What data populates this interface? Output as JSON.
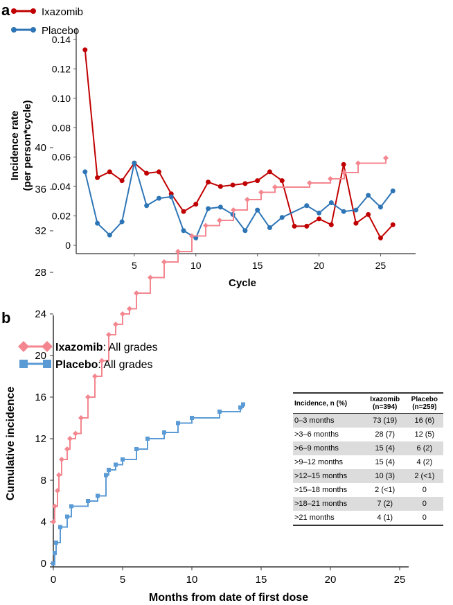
{
  "chart_data": [
    {
      "type": "line",
      "panel_label": "a",
      "xlabel": "Cycle",
      "ylabel": "Incidence rate\n(per person*cycle)",
      "ylabel_lines": [
        "Incidence rate",
        "(per person*cycle)"
      ],
      "xlim": [
        0,
        27
      ],
      "ylim": [
        0,
        0.14
      ],
      "xticks": [
        5,
        10,
        15,
        20,
        25
      ],
      "yticks": [
        "0",
        "0.02",
        "0.04",
        "0.06",
        "0.08",
        "0.10",
        "0.12",
        "0.14"
      ],
      "x": [
        1,
        2,
        3,
        4,
        5,
        6,
        7,
        8,
        9,
        10,
        11,
        12,
        13,
        14,
        15,
        16,
        17,
        18,
        19,
        20,
        21,
        22,
        23,
        24,
        25,
        26
      ],
      "series": [
        {
          "name": "Ixazomib",
          "color": "#c00000",
          "values": [
            0.133,
            0.046,
            0.05,
            0.044,
            0.056,
            0.049,
            0.05,
            0.035,
            0.023,
            0.028,
            0.043,
            0.04,
            0.041,
            0.042,
            0.044,
            0.05,
            0.044,
            0.013,
            0.013,
            0.018,
            0.014,
            0.055,
            0.015,
            0.021,
            0.005,
            0.014
          ]
        },
        {
          "name": "Placebo",
          "color": "#2e75b6",
          "values": [
            0.05,
            0.015,
            0.007,
            0.016,
            0.056,
            0.027,
            0.032,
            0.033,
            0.01,
            0.005,
            0.025,
            0.026,
            0.021,
            0.01,
            0.024,
            0.012,
            0.019,
            null,
            0.027,
            0.022,
            0.029,
            0.023,
            0.024,
            0.034,
            0.026,
            0.037
          ]
        }
      ],
      "legend": "top-left"
    },
    {
      "type": "line",
      "panel_label": "b",
      "xlabel": "Months from date of first dose",
      "ylabel": "Cumulative incidence",
      "xlim": [
        0,
        25
      ],
      "ylim": [
        0,
        40
      ],
      "xticks": [
        0,
        5,
        10,
        15,
        20,
        25
      ],
      "yticks": [
        0,
        4,
        8,
        12,
        16,
        20,
        24,
        28,
        32,
        36,
        40
      ],
      "series": [
        {
          "name": "Ixazomib",
          "suffix": ": All grades",
          "color": "#f4868f",
          "marker": "diamond",
          "points": [
            [
              0,
              4
            ],
            [
              0.1,
              5.5
            ],
            [
              0.3,
              7
            ],
            [
              0.4,
              8.5
            ],
            [
              0.6,
              10
            ],
            [
              1,
              11
            ],
            [
              1.2,
              12
            ],
            [
              1.6,
              12.5
            ],
            [
              2,
              14
            ],
            [
              2.5,
              16
            ],
            [
              3,
              18
            ],
            [
              3.5,
              19.5
            ],
            [
              4,
              22
            ],
            [
              4.5,
              23
            ],
            [
              5,
              24
            ],
            [
              5.5,
              24.5
            ],
            [
              6,
              26
            ],
            [
              7,
              27.5
            ],
            [
              8,
              29
            ],
            [
              9,
              30
            ],
            [
              10,
              31.5
            ],
            [
              11,
              32.5
            ],
            [
              12,
              33
            ],
            [
              13,
              34
            ],
            [
              14,
              35
            ],
            [
              15,
              35.7
            ],
            [
              16,
              36.2
            ],
            [
              18.5,
              36.6
            ],
            [
              20,
              37
            ],
            [
              21,
              37.6
            ],
            [
              22,
              38.5
            ],
            [
              24,
              39
            ]
          ]
        },
        {
          "name": "Placebo",
          "suffix": ": All grades",
          "color": "#5b9bd5",
          "marker": "square",
          "points": [
            [
              0,
              0
            ],
            [
              0.1,
              1
            ],
            [
              0.2,
              2
            ],
            [
              0.5,
              3.5
            ],
            [
              1,
              4.5
            ],
            [
              1.3,
              5.5
            ],
            [
              2.5,
              6
            ],
            [
              3.2,
              6.5
            ],
            [
              3.8,
              8.5
            ],
            [
              4,
              9
            ],
            [
              4.5,
              9.5
            ],
            [
              5,
              10
            ],
            [
              6,
              11
            ],
            [
              6.8,
              12
            ],
            [
              8,
              12.6
            ],
            [
              9,
              13.5
            ],
            [
              10,
              14
            ],
            [
              12,
              14.6
            ],
            [
              13.5,
              15
            ],
            [
              13.7,
              15.3
            ]
          ]
        }
      ],
      "legend": "top-left"
    }
  ],
  "table": {
    "headers": [
      "Incidence, n (%)",
      "Ixazomib\n(n=394)",
      "Placebo\n(n=259)"
    ],
    "header_lines": [
      [
        "Incidence, n (%)"
      ],
      [
        "Ixazomib",
        "(n=394)"
      ],
      [
        "Placebo",
        "(n=259)"
      ]
    ],
    "rows": [
      [
        "0–3 months",
        "73 (19)",
        "16 (6)"
      ],
      [
        ">3–6 months",
        "28 (7)",
        "12 (5)"
      ],
      [
        ">6–9 months",
        "15 (4)",
        "6 (2)"
      ],
      [
        ">9–12 months",
        "15 (4)",
        "4 (2)"
      ],
      [
        ">12–15 months",
        "10 (3)",
        "2 (<1)"
      ],
      [
        ">15–18 months",
        "2 (<1)",
        "0"
      ],
      [
        ">18–21 months",
        "7 (2)",
        "0"
      ],
      [
        ">21 months",
        "4 (1)",
        "0"
      ]
    ]
  }
}
